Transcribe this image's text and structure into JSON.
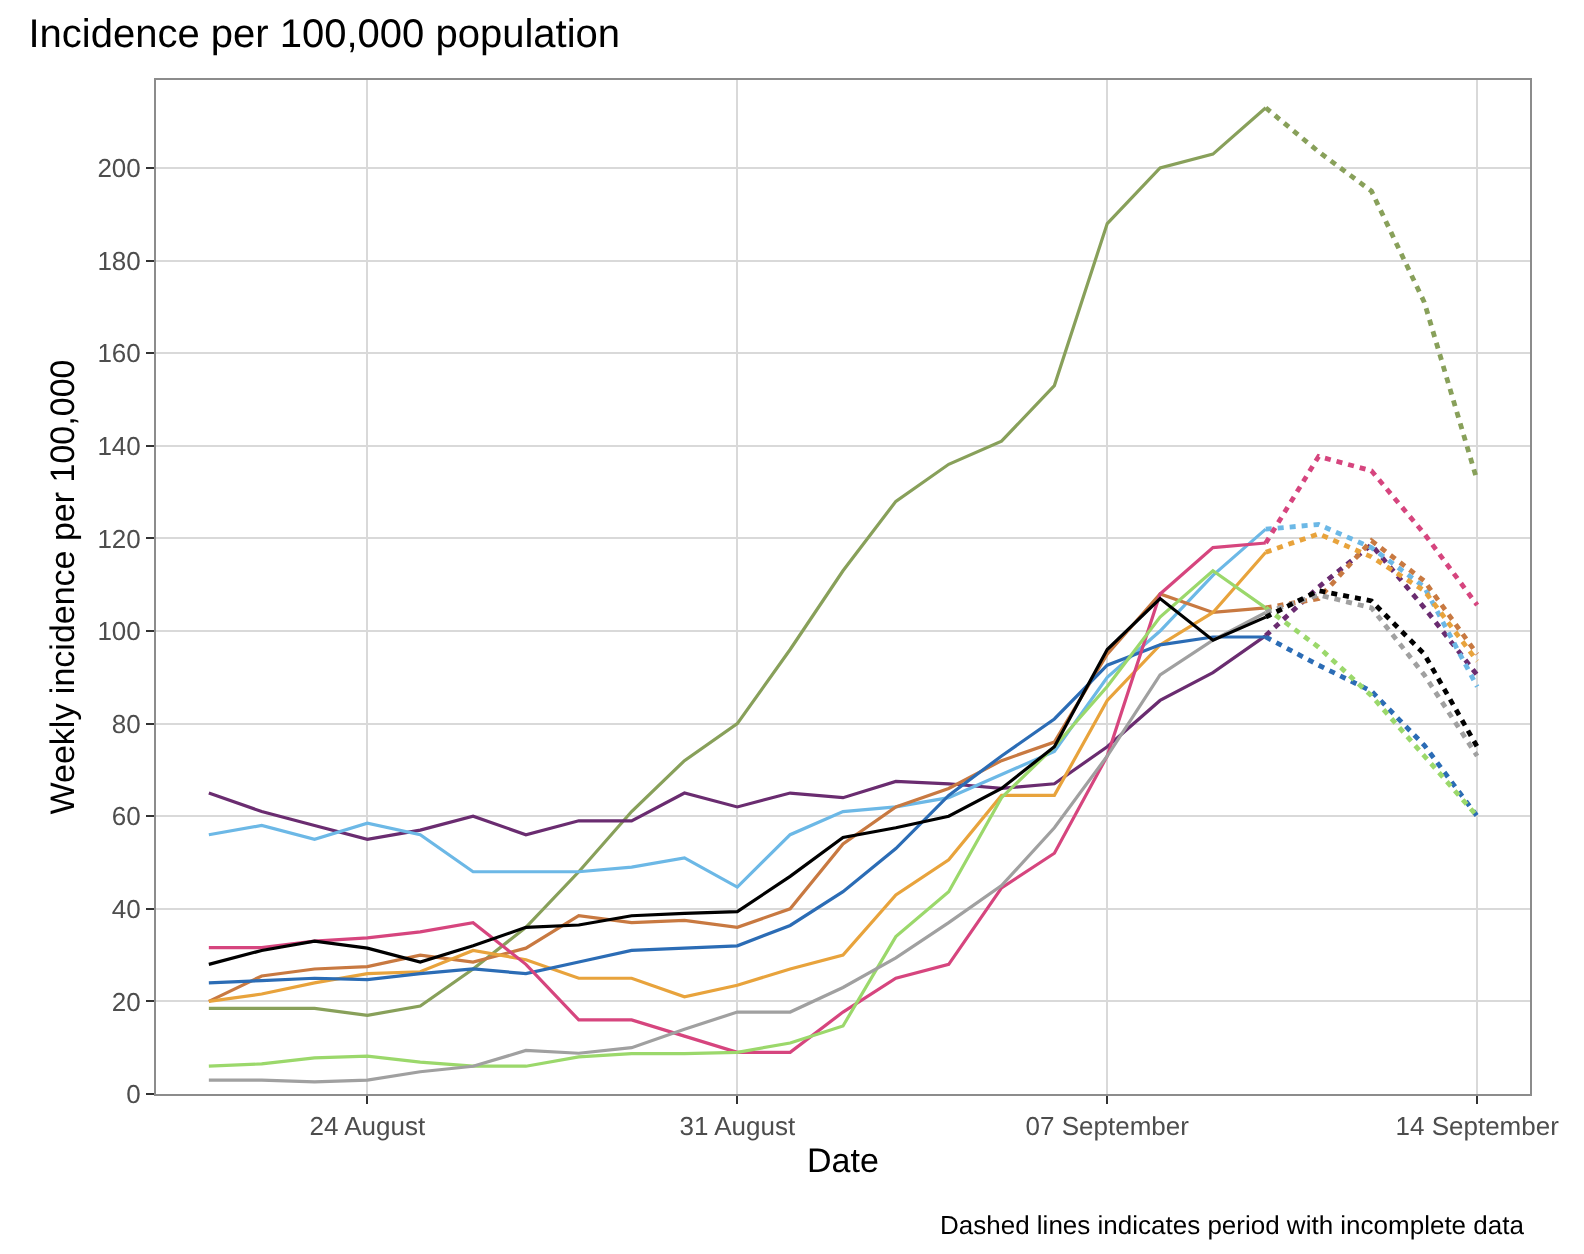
{
  "chart_data": {
    "type": "line",
    "title": "Incidence per 100,000 population",
    "xlabel": "Date",
    "ylabel": "Weekly incidence per 100,000",
    "annotations": [
      "Dashed lines indicates period with incomplete data"
    ],
    "x": [
      "--08-21",
      "--08-22",
      "--08-23",
      "--08-24",
      "--08-25",
      "--08-26",
      "--08-27",
      "--08-28",
      "--08-29",
      "--08-30",
      "--08-31",
      "--09-01",
      "--09-02",
      "--09-03",
      "--09-04",
      "--09-05",
      "--09-06",
      "--09-07",
      "--09-08",
      "--09-09",
      "--09-10"
    ],
    "xlim": [
      "--08-20",
      "--09-15"
    ],
    "xticks": [
      {
        "value": "--08-24",
        "label": "24 August"
      },
      {
        "value": "--08-31",
        "label": "31 August"
      },
      {
        "value": "--09-07",
        "label": "07 September"
      },
      {
        "value": "--09-14",
        "label": "14 September"
      }
    ],
    "ylim": [
      0,
      219
    ],
    "yticks": [
      0,
      20,
      40,
      60,
      80,
      100,
      120,
      140,
      160,
      180,
      200
    ],
    "grid": true,
    "marker": "none",
    "series": [
      {
        "color": "#88a05a",
        "line_style": "solid",
        "values": [
          18.5,
          18.5,
          18.5,
          17,
          19,
          27,
          36,
          48,
          61,
          72,
          80,
          96,
          113,
          128,
          136,
          141,
          153,
          188,
          200,
          203,
          213
        ]
      },
      {
        "color": "#6a2c70",
        "line_style": "solid",
        "values": [
          65,
          61,
          58,
          55,
          57,
          60,
          56,
          59,
          59,
          65,
          62,
          65,
          64,
          67.5,
          67,
          66,
          67,
          75,
          85,
          91,
          99
        ]
      },
      {
        "color": "#6cb8e6",
        "line_style": "solid",
        "values": [
          56,
          58,
          55,
          58.5,
          56,
          48,
          48,
          48,
          49,
          51,
          44.7,
          56,
          61,
          62,
          64,
          69,
          74,
          90,
          100,
          112,
          122
        ]
      },
      {
        "color": "#c87941",
        "line_style": "solid",
        "values": [
          20,
          25.5,
          27,
          27.5,
          30,
          28.5,
          31.5,
          38.5,
          37,
          37.5,
          36,
          40,
          54,
          62,
          66,
          72,
          76,
          95,
          108,
          104,
          105
        ]
      },
      {
        "color": "#e8a33c",
        "line_style": "solid",
        "values": [
          20,
          21.6,
          24,
          26,
          26.4,
          31,
          29,
          25,
          25,
          21,
          23.5,
          27,
          30,
          43,
          50.6,
          64.5,
          64.5,
          85,
          97,
          104,
          117
        ]
      },
      {
        "color": "#2b6cb5",
        "line_style": "solid",
        "values": [
          24,
          24.5,
          25,
          24.7,
          26,
          27,
          26,
          28.5,
          31,
          31.5,
          32,
          36.4,
          43.7,
          53,
          64.5,
          73,
          81,
          92.6,
          97,
          98.7,
          98.7
        ]
      },
      {
        "color": "#d6457e",
        "line_style": "solid",
        "values": [
          31.6,
          31.6,
          33,
          33.7,
          35,
          37,
          28,
          16,
          16,
          12.5,
          9,
          9,
          17.7,
          25,
          28,
          44.5,
          52,
          73,
          108,
          118,
          119
        ]
      },
      {
        "color": "#9bd86b",
        "line_style": "solid",
        "values": [
          6,
          6.5,
          7.8,
          8.2,
          6.9,
          6,
          6,
          8,
          8.7,
          8.7,
          9,
          11,
          14.7,
          34,
          43.7,
          64,
          75,
          88,
          103,
          113,
          105
        ]
      },
      {
        "color": "#a0a0a0",
        "line_style": "solid",
        "values": [
          3,
          3,
          2.6,
          3,
          4.8,
          6,
          9.4,
          8.8,
          10,
          14,
          17.7,
          17.7,
          23,
          29.4,
          37,
          45,
          57.5,
          73,
          90.5,
          98,
          104
        ]
      },
      {
        "color": "#000000",
        "line_style": "solid",
        "values": [
          28,
          31,
          33,
          31.5,
          28.5,
          32,
          36,
          36.5,
          38.5,
          39,
          39.4,
          47,
          55.4,
          57.5,
          60,
          66,
          75,
          96,
          107,
          98,
          103
        ]
      },
      {
        "color": "#88a05a",
        "line_style": "dotted",
        "x": [
          "--09-10",
          "--09-11",
          "--09-12",
          "--09-13",
          "--09-14"
        ],
        "values": [
          213,
          203.5,
          195,
          171,
          132.5
        ]
      },
      {
        "color": "#6a2c70",
        "line_style": "dotted",
        "x": [
          "--09-10",
          "--09-11",
          "--09-12",
          "--09-13",
          "--09-14"
        ],
        "values": [
          99,
          109.5,
          118.6,
          105,
          90.5
        ]
      },
      {
        "color": "#6cb8e6",
        "line_style": "dotted",
        "x": [
          "--09-10",
          "--09-11",
          "--09-12",
          "--09-13",
          "--09-14"
        ],
        "values": [
          122,
          123,
          118,
          109.5,
          88
        ]
      },
      {
        "color": "#c87941",
        "line_style": "dotted",
        "x": [
          "--09-10",
          "--09-11",
          "--09-12",
          "--09-13",
          "--09-14"
        ],
        "values": [
          105,
          107,
          119.5,
          110.8,
          95
        ]
      },
      {
        "color": "#e8a33c",
        "line_style": "dotted",
        "x": [
          "--09-10",
          "--09-11",
          "--09-12",
          "--09-13",
          "--09-14"
        ],
        "values": [
          117,
          121,
          116,
          108.7,
          93.5
        ]
      },
      {
        "color": "#2b6cb5",
        "line_style": "dotted",
        "x": [
          "--09-10",
          "--09-11",
          "--09-12",
          "--09-13",
          "--09-14"
        ],
        "values": [
          98.7,
          92.6,
          87,
          75.3,
          60
        ]
      },
      {
        "color": "#d6457e",
        "line_style": "dotted",
        "x": [
          "--09-10",
          "--09-11",
          "--09-12",
          "--09-13",
          "--09-14"
        ],
        "values": [
          119,
          137.7,
          134.6,
          121,
          105.6
        ]
      },
      {
        "color": "#9bd86b",
        "line_style": "dotted",
        "x": [
          "--09-10",
          "--09-11",
          "--09-12",
          "--09-13",
          "--09-14"
        ],
        "values": [
          105,
          96.5,
          86,
          73,
          60
        ]
      },
      {
        "color": "#a0a0a0",
        "line_style": "dotted",
        "x": [
          "--09-10",
          "--09-11",
          "--09-12",
          "--09-13",
          "--09-14"
        ],
        "values": [
          104,
          107.8,
          105,
          90.5,
          73
        ]
      },
      {
        "color": "#000000",
        "line_style": "dotted",
        "x": [
          "--09-10",
          "--09-11",
          "--09-12",
          "--09-13",
          "--09-14"
        ],
        "values": [
          103,
          108.7,
          106.5,
          95,
          75
        ]
      }
    ]
  }
}
